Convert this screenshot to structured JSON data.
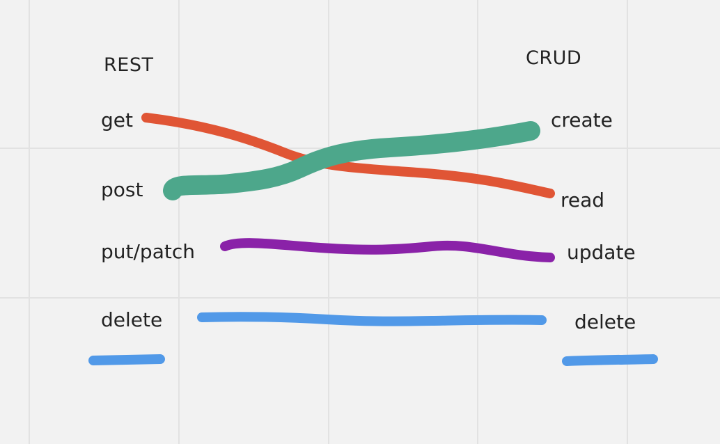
{
  "rest": {
    "heading": "REST",
    "methods": [
      "get",
      "post",
      "put/patch",
      "delete"
    ]
  },
  "crud": {
    "heading": "CRUD",
    "operations": [
      "create",
      "read",
      "update",
      "delete"
    ]
  },
  "colors": {
    "background": "#f2f2f2",
    "grid": "#e2e2e2",
    "text": "#222222",
    "get_to_read": "#e05535",
    "post_to_create": "#4da78b",
    "put_patch_to_update": "#8a22a8",
    "delete_to_delete": "#5199e8"
  }
}
